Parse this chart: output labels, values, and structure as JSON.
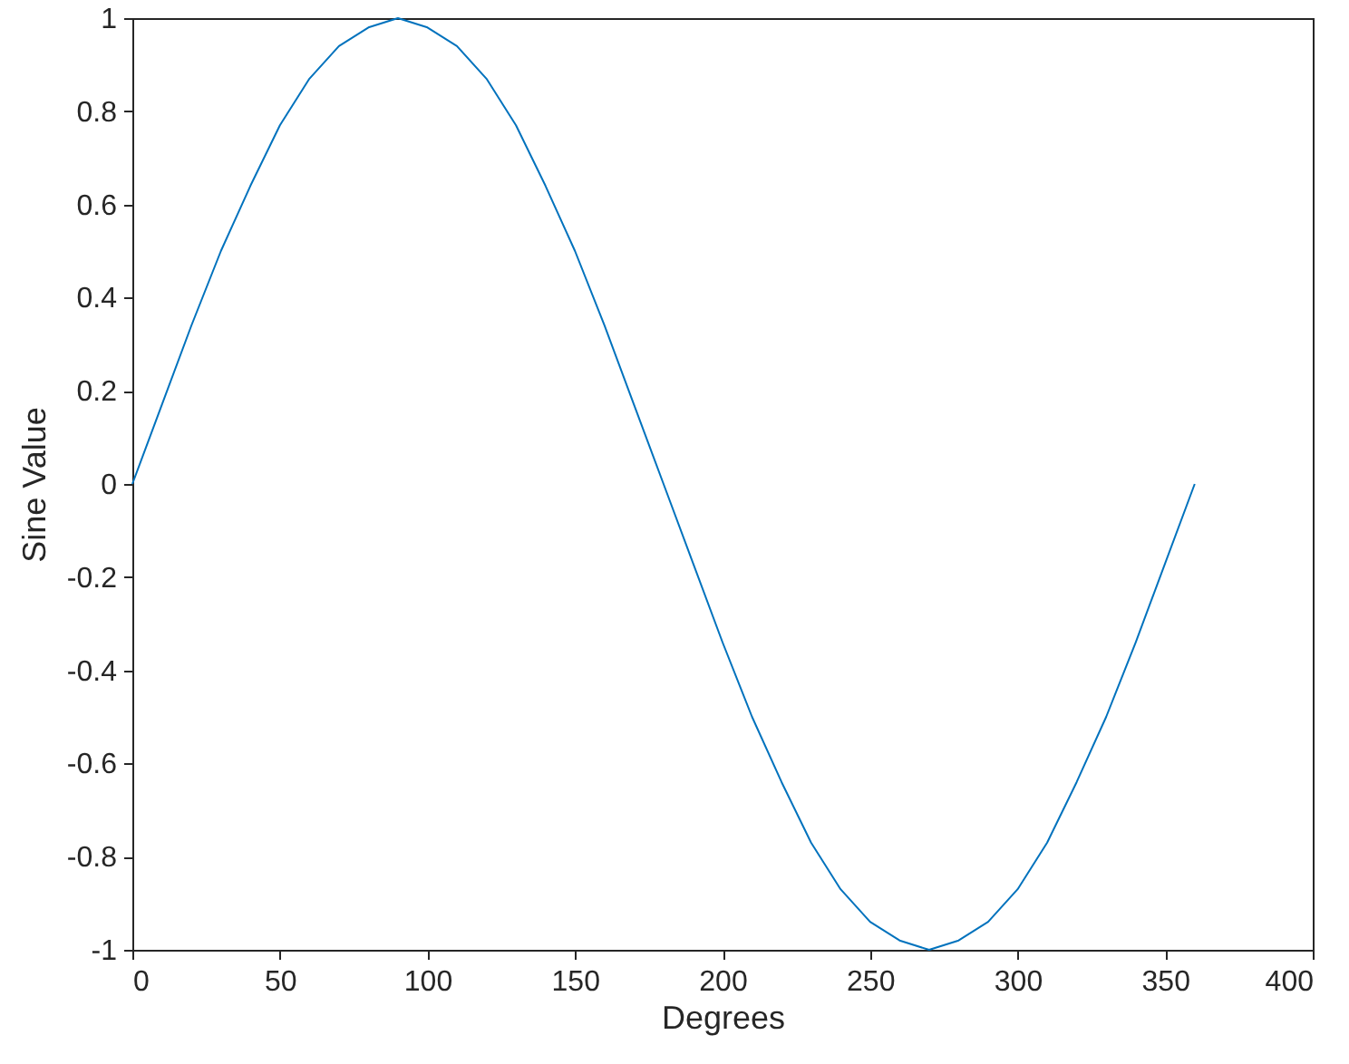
{
  "chart_data": {
    "type": "line",
    "xlabel": "Degrees",
    "ylabel": "Sine Value",
    "x": [
      0,
      10,
      20,
      30,
      40,
      50,
      60,
      70,
      80,
      90,
      100,
      110,
      120,
      130,
      140,
      150,
      160,
      170,
      180,
      190,
      200,
      210,
      220,
      230,
      240,
      250,
      260,
      270,
      280,
      290,
      300,
      310,
      320,
      330,
      340,
      350,
      360
    ],
    "series": [
      {
        "color": "#0072bd",
        "values": [
          0,
          0.17,
          0.34,
          0.5,
          0.64,
          0.77,
          0.87,
          0.94,
          0.98,
          1,
          0.98,
          0.94,
          0.87,
          0.77,
          0.64,
          0.5,
          0.34,
          0.17,
          0,
          -0.17,
          -0.34,
          -0.5,
          -0.64,
          -0.77,
          -0.87,
          -0.94,
          -0.98,
          -1,
          -0.98,
          -0.94,
          -0.87,
          -0.77,
          -0.64,
          -0.5,
          -0.34,
          -0.17,
          0
        ]
      }
    ],
    "xlim": [
      0,
      400
    ],
    "xticks": [
      0,
      50,
      100,
      150,
      200,
      250,
      300,
      350,
      400
    ],
    "ylim": [
      -1,
      1
    ],
    "yticks": [
      -1,
      -0.8,
      -0.6,
      -0.4,
      -0.2,
      0,
      0.2,
      0.4,
      0.6,
      0.8,
      1
    ],
    "grid": false,
    "marker": "none",
    "line_style": "solid"
  }
}
